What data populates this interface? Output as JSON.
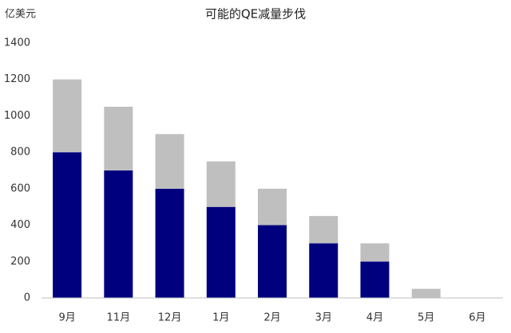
{
  "chart_data": {
    "type": "stacked_bar",
    "title": "可能的QE减量步伐",
    "y_axis_label": "亿美元",
    "categories": [
      "9月",
      "11月",
      "12月",
      "1月",
      "2月",
      "3月",
      "4月",
      "5月",
      "6月"
    ],
    "series": [
      {
        "color": "#00007f",
        "values": [
          800,
          700,
          600,
          500,
          400,
          300,
          200,
          0,
          0
        ]
      },
      {
        "color": "#bfbfbf",
        "values": [
          400,
          350,
          300,
          250,
          200,
          150,
          100,
          50,
          0
        ]
      }
    ],
    "ylim": [
      0,
      1400
    ],
    "yticks": [
      0,
      200,
      400,
      600,
      800,
      1000,
      1200,
      1400
    ],
    "grid": false
  }
}
